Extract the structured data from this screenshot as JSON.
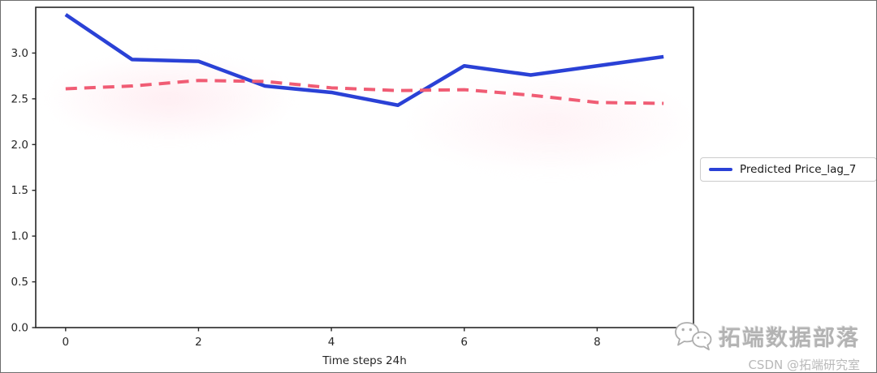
{
  "chart_data": {
    "type": "line",
    "title": "",
    "xlabel": "Time steps 24h",
    "ylabel": "",
    "x": [
      0,
      1,
      2,
      3,
      4,
      5,
      6,
      7,
      8,
      9
    ],
    "series": [
      {
        "name": "Predicted Price_lag_7",
        "in_legend": true,
        "color": "#2a41d6",
        "line_style": "solid",
        "line_width": 4.5,
        "values": [
          3.42,
          2.93,
          2.91,
          2.64,
          2.57,
          2.43,
          2.86,
          2.76,
          2.86,
          2.96
        ]
      },
      {
        "name": "",
        "in_legend": false,
        "color": "#f05c74",
        "line_style": "dashed",
        "line_width": 4,
        "values": [
          2.61,
          2.64,
          2.7,
          2.69,
          2.62,
          2.59,
          2.6,
          2.54,
          2.46,
          2.45
        ]
      }
    ],
    "x_ticks": [
      0,
      2,
      4,
      6,
      8
    ],
    "y_ticks": [
      0.0,
      0.5,
      1.0,
      1.5,
      2.0,
      2.5,
      3.0
    ],
    "y_tick_labels": [
      "0.0",
      "0.5",
      "1.0",
      "1.5",
      "2.0",
      "2.5",
      "3.0"
    ],
    "xlim": [
      -0.45,
      9.45
    ],
    "ylim": [
      0,
      3.5
    ],
    "grid": false,
    "axis_color": "#262626",
    "legend": {
      "position": "outside-right",
      "entries": [
        "Predicted Price_lag_7"
      ]
    }
  },
  "watermark": {
    "brand_text": "拓端数据部落",
    "csdn_text": "CSDN @拓端研究室",
    "icon": "wechat-icon"
  }
}
